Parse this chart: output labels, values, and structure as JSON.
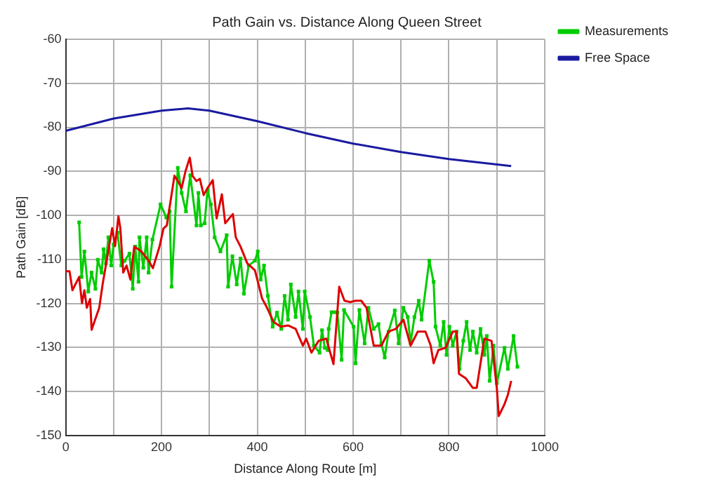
{
  "chart_data": {
    "type": "line",
    "title": "Path Gain vs. Distance Along Queen Street",
    "xlabel": "Distance Along Route [m]",
    "ylabel": "Path Gain [dB]",
    "xlim": [
      0,
      1000
    ],
    "xticks": [
      0,
      {
        "value": 100,
        "label": null
      },
      200,
      {
        "value": 300,
        "label": null
      },
      400,
      {
        "value": 500,
        "label": null
      },
      600,
      {
        "value": 700,
        "label": null
      },
      800,
      {
        "value": 900,
        "label": null
      },
      1000
    ],
    "ylim": [
      -150,
      -60
    ],
    "yticks": [
      -150,
      -140,
      -130,
      -120,
      -110,
      -100,
      -90,
      -80,
      -70,
      -60
    ],
    "grid": true,
    "legend": "top right",
    "line_style": "solid",
    "series": [
      {
        "color": "#dd0000",
        "marker": "none",
        "x": [
          0,
          8,
          14,
          28,
          34,
          39,
          44,
          51,
          54,
          70,
          77,
          97,
          103,
          110,
          114,
          120,
          127,
          135,
          143,
          158,
          173,
          182,
          196,
          204,
          211,
          227,
          234,
          242,
          250,
          259,
          265,
          273,
          280,
          288,
          296,
          307,
          315,
          326,
          333,
          349,
          355,
          365,
          379,
          395,
          410,
          418,
          434,
          449,
          464,
          480,
          495,
          502,
          513,
          528,
          544,
          559,
          571,
          582,
          594,
          605,
          617,
          628,
          643,
          659,
          674,
          689,
          705,
          720,
          735,
          751,
          762,
          768,
          778,
          793,
          808,
          816,
          821,
          835,
          850,
          858,
          874,
          889,
          900,
          904,
          916,
          923,
          930
        ],
        "values": [
          -112.7,
          -112.7,
          -117,
          -114,
          -120,
          -117,
          -121,
          -119,
          -126,
          -121,
          -115.7,
          -102.9,
          -107,
          -100.2,
          -102.9,
          -113,
          -111.4,
          -114.6,
          -107.1,
          -108.2,
          -110.3,
          -112,
          -107,
          -103,
          -102.3,
          -91,
          -92.2,
          -93.8,
          -90,
          -86.9,
          -91.1,
          -92.2,
          -91.7,
          -95.4,
          -93.8,
          -92,
          -100.7,
          -95.2,
          -101.8,
          -99.7,
          -105,
          -107.1,
          -110.9,
          -112.5,
          -118.9,
          -120.5,
          -124.2,
          -125.3,
          -125,
          -125.8,
          -129.6,
          -128,
          -131.2,
          -128.5,
          -128,
          -133.8,
          -116.2,
          -119.4,
          -119.7,
          -119.4,
          -119.4,
          -121,
          -129.6,
          -129.6,
          -126.4,
          -125.8,
          -123.7,
          -129.6,
          -126.4,
          -126.4,
          -129.6,
          -133.6,
          -130.6,
          -130.1,
          -126.4,
          -126.4,
          -136,
          -137,
          -139.2,
          -139.2,
          -128,
          -128.5,
          -139.2,
          -145.6,
          -142.9,
          -140.8,
          -137.6
        ]
      },
      {
        "name": "Measurements",
        "color": "#00cc00",
        "marker": "square",
        "x": [
          28,
          33,
          39,
          47,
          54,
          62,
          67,
          75,
          79,
          84,
          89,
          95,
          100,
          108,
          116,
          123,
          133,
          140,
          145,
          152,
          154,
          162,
          169,
          173,
          181,
          198,
          210,
          217,
          221,
          234,
          242,
          251,
          260,
          273,
          277,
          282,
          290,
          296,
          303,
          311,
          323,
          336,
          339,
          348,
          357,
          365,
          372,
          382,
          395,
          401,
          407,
          414,
          422,
          432,
          441,
          450,
          457,
          464,
          470,
          480,
          486,
          495,
          499,
          510,
          518,
          530,
          535,
          541,
          547,
          549,
          555,
          563,
          567,
          576,
          581,
          601,
          605,
          613,
          624,
          632,
          643,
          653,
          659,
          666,
          674,
          687,
          695,
          705,
          714,
          720,
          728,
          737,
          743,
          759,
          768,
          772,
          782,
          789,
          795,
          801,
          808,
          816,
          822,
          830,
          837,
          844,
          850,
          858,
          866,
          874,
          879,
          885,
          893,
          900,
          916,
          923,
          935,
          943
        ],
        "values": [
          -101.6,
          -114,
          -108.2,
          -117.3,
          -113,
          -116.7,
          -110.1,
          -113,
          -107.7,
          -110.9,
          -105,
          -111.4,
          -106.6,
          -103.9,
          -111.4,
          -110.3,
          -108.7,
          -116.7,
          -107.1,
          -115.1,
          -105,
          -111.9,
          -105,
          -113,
          -105.5,
          -97.5,
          -100.5,
          -99.1,
          -116.2,
          -89.2,
          -94.9,
          -99.1,
          -90.9,
          -102.3,
          -94.9,
          -102.3,
          -101.8,
          -94.3,
          -97.5,
          -105,
          -108.2,
          -104.5,
          -116.2,
          -109.3,
          -115.7,
          -109.8,
          -117.8,
          -111.4,
          -110.3,
          -108.2,
          -114.6,
          -111.4,
          -118.3,
          -125.3,
          -122.1,
          -125.8,
          -118.3,
          -123.7,
          -115.7,
          -123.1,
          -117.3,
          -125.8,
          -117.3,
          -123.1,
          -129.6,
          -131.2,
          -126.1,
          -130.1,
          -130.6,
          -125.8,
          -122,
          -122,
          -122.1,
          -132.8,
          -121.5,
          -125.3,
          -133.6,
          -121.5,
          -129.1,
          -121,
          -125.8,
          -124.7,
          -129.1,
          -132.3,
          -126.4,
          -121.6,
          -129.1,
          -121,
          -123.1,
          -129,
          -123.1,
          -119.4,
          -123.7,
          -110.3,
          -115.1,
          -125.3,
          -129.6,
          -124.2,
          -131.7,
          -125.3,
          -129.6,
          -126.4,
          -134.9,
          -128.5,
          -124.2,
          -130.6,
          -126.4,
          -131.2,
          -125.8,
          -131.7,
          -127.4,
          -137.6,
          -129.6,
          -138.1,
          -130.1,
          -134.9,
          -127.4,
          -134.4
        ]
      },
      {
        "name": "Free Space",
        "color": "#1a1aa0",
        "marker": "none",
        "x": [
          0,
          100,
          200,
          255,
          300,
          400,
          500,
          600,
          700,
          800,
          930
        ],
        "values": [
          -80.8,
          -78,
          -76.2,
          -75.7,
          -76.2,
          -78.6,
          -81.3,
          -83.7,
          -85.6,
          -87.2,
          -88.8
        ]
      }
    ]
  }
}
